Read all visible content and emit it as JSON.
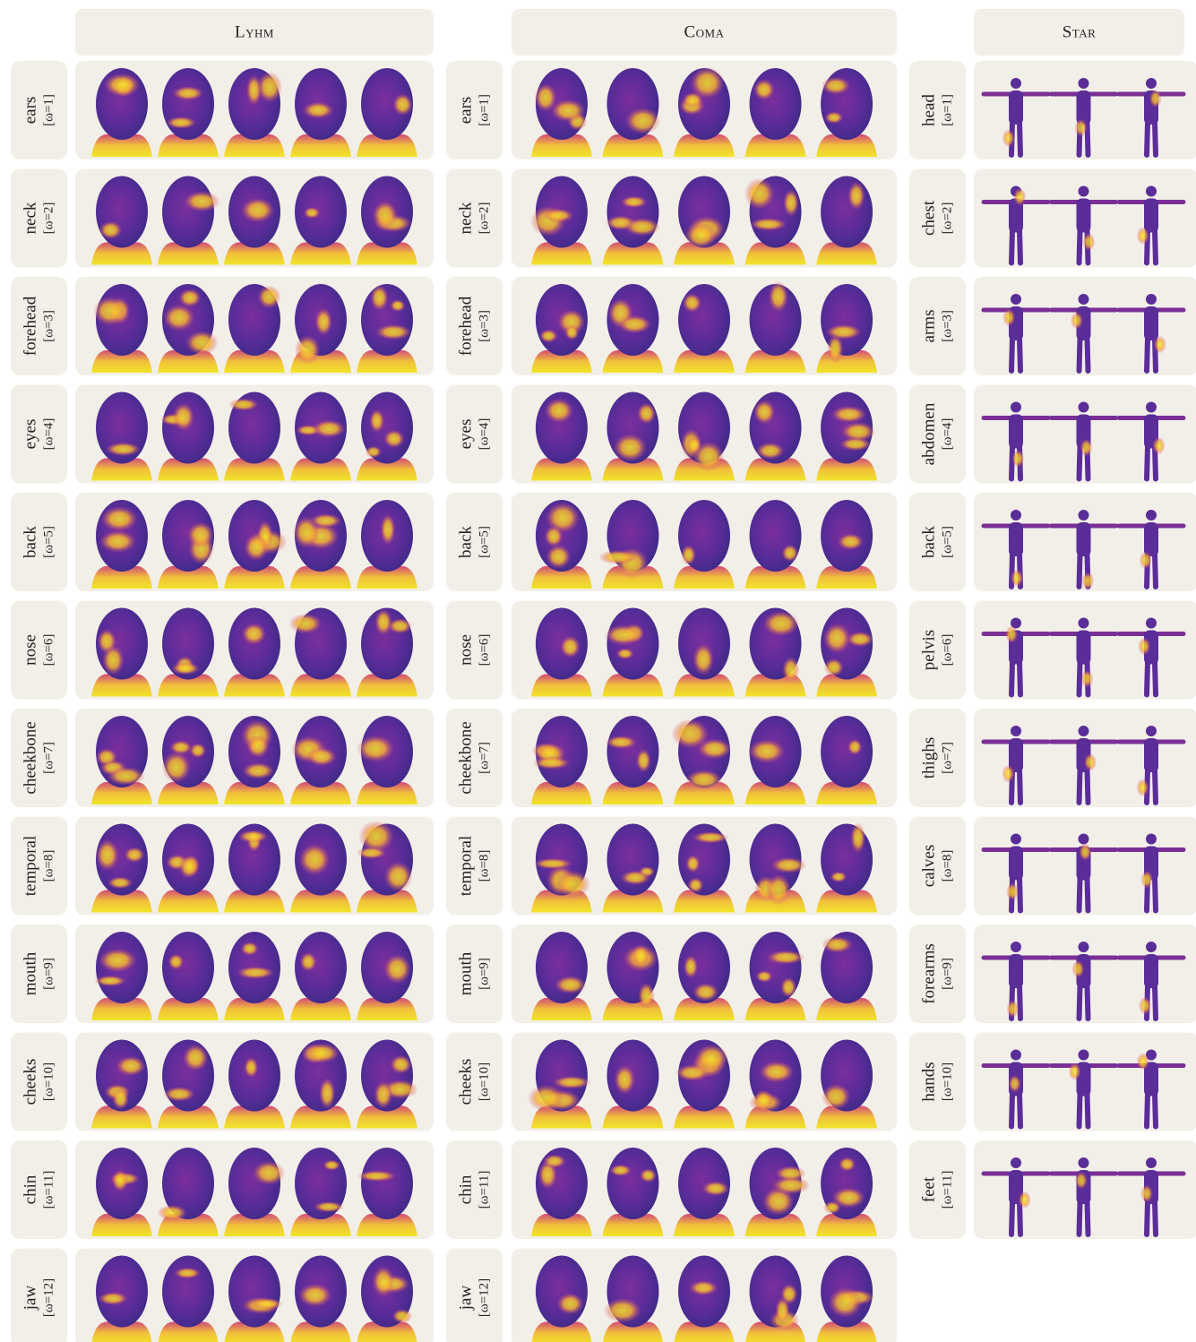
{
  "columns": [
    {
      "title": "Lyhm",
      "rows": [
        {
          "region": "ears",
          "omega": "[ω=1]"
        },
        {
          "region": "neck",
          "omega": "[ω=2]"
        },
        {
          "region": "forehead",
          "omega": "[ω=3]"
        },
        {
          "region": "eyes",
          "omega": "[ω=4]"
        },
        {
          "region": "back",
          "omega": "[ω=5]"
        },
        {
          "region": "nose",
          "omega": "[ω=6]"
        },
        {
          "region": "cheekbone",
          "omega": "[ω=7]"
        },
        {
          "region": "temporal",
          "omega": "[ω=8]"
        },
        {
          "region": "mouth",
          "omega": "[ω=9]"
        },
        {
          "region": "cheeks",
          "omega": "[ω=10]"
        },
        {
          "region": "chin",
          "omega": "[ω=11]"
        },
        {
          "region": "jaw",
          "omega": "[ω=12]"
        }
      ]
    },
    {
      "title": "Coma",
      "rows": [
        {
          "region": "ears",
          "omega": "[ω=1]"
        },
        {
          "region": "neck",
          "omega": "[ω=2]"
        },
        {
          "region": "forehead",
          "omega": "[ω=3]"
        },
        {
          "region": "eyes",
          "omega": "[ω=4]"
        },
        {
          "region": "back",
          "omega": "[ω=5]"
        },
        {
          "region": "nose",
          "omega": "[ω=6]"
        },
        {
          "region": "cheekbone",
          "omega": "[ω=7]"
        },
        {
          "region": "temporal",
          "omega": "[ω=8]"
        },
        {
          "region": "mouth",
          "omega": "[ω=9]"
        },
        {
          "region": "cheeks",
          "omega": "[ω=10]"
        },
        {
          "region": "chin",
          "omega": "[ω=11]"
        },
        {
          "region": "jaw",
          "omega": "[ω=12]"
        }
      ]
    },
    {
      "title": "Star",
      "rows": [
        {
          "region": "head",
          "omega": "[ω=1]"
        },
        {
          "region": "chest",
          "omega": "[ω=2]"
        },
        {
          "region": "arms",
          "omega": "[ω=3]"
        },
        {
          "region": "abdomen",
          "omega": "[ω=4]"
        },
        {
          "region": "back",
          "omega": "[ω=5]"
        },
        {
          "region": "pelvis",
          "omega": "[ω=6]"
        },
        {
          "region": "thighs",
          "omega": "[ω=7]"
        },
        {
          "region": "calves",
          "omega": "[ω=8]"
        },
        {
          "region": "forearms",
          "omega": "[ω=9]"
        },
        {
          "region": "hands",
          "omega": "[ω=10]"
        },
        {
          "region": "feet",
          "omega": "[ω=11]"
        }
      ]
    }
  ]
}
